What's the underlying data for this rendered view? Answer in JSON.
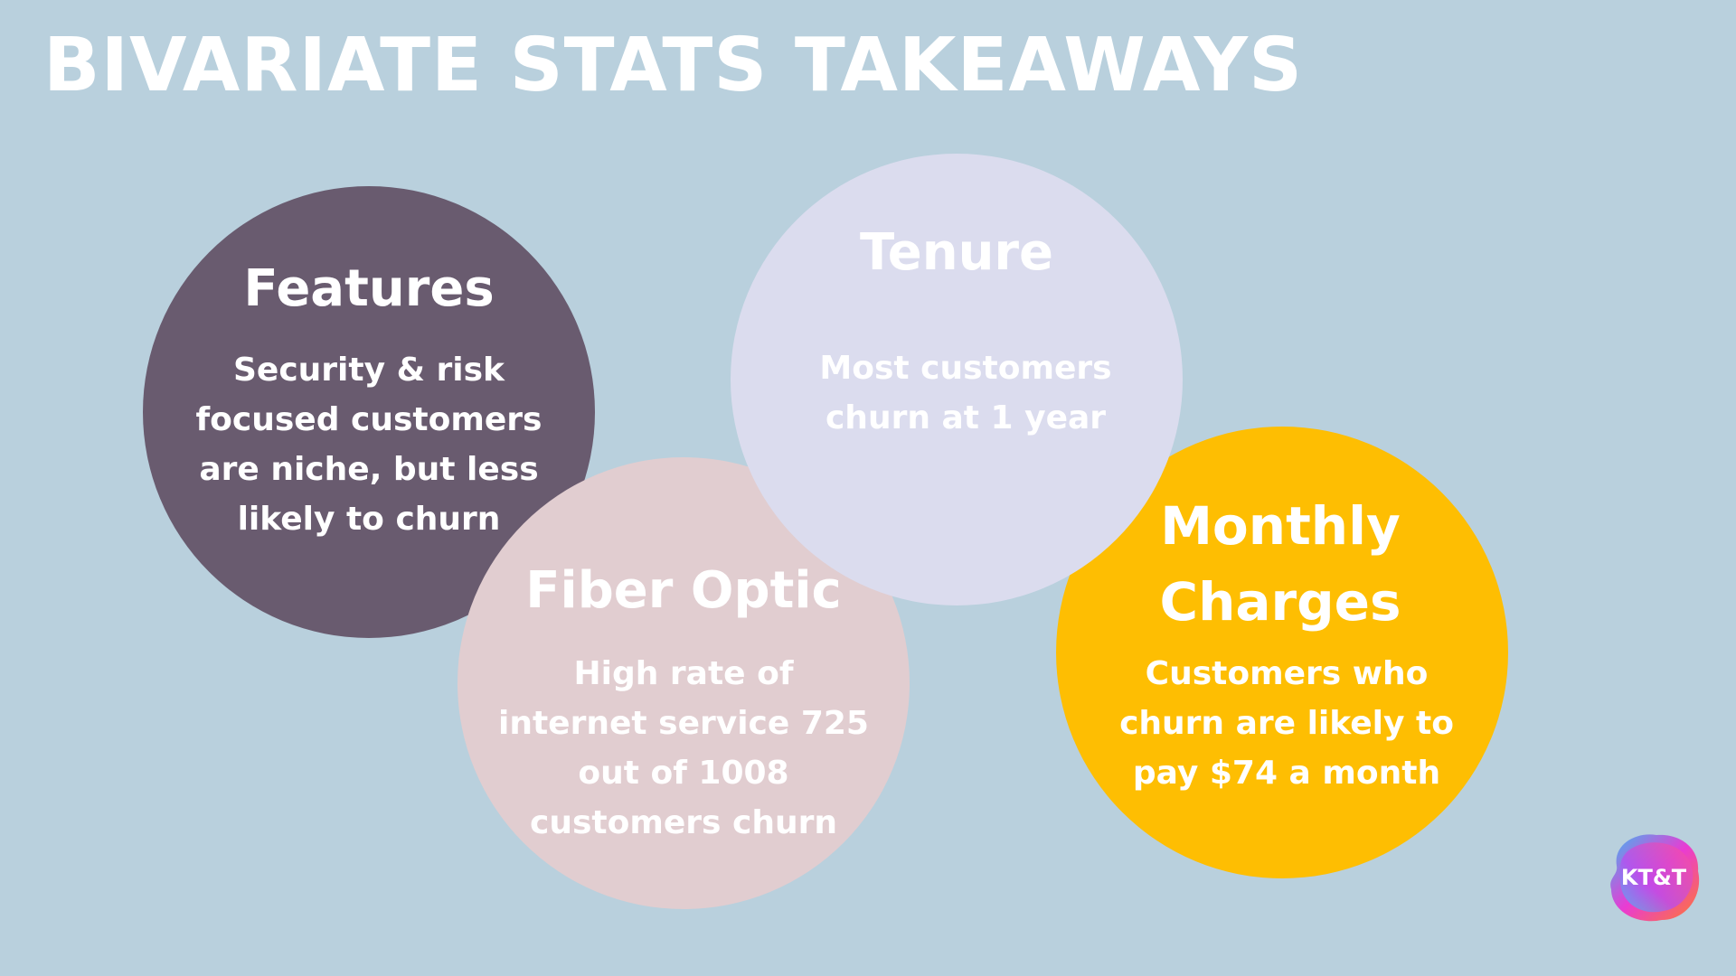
{
  "slide": {
    "title": "BIVARIATE STATS TAKEAWAYS",
    "background_color": "#B9D0DD"
  },
  "circles": {
    "features": {
      "heading": "Features",
      "body": "Security & risk focused customers are niche, but less likely to churn",
      "color": "#695B6F"
    },
    "fiber_optic": {
      "heading": "Fiber Optic",
      "body": "High rate of internet service 725 out of 1008 customers churn",
      "color": "#E1CDD0"
    },
    "tenure": {
      "heading": "Tenure",
      "body": "Most customers churn at 1 year",
      "color": "#DBDCEE"
    },
    "monthly_charges": {
      "heading": "Monthly Charges",
      "body": "Customers who churn are likely to pay $74 a month",
      "color": "#FEBE02"
    }
  },
  "logo": {
    "text": "KT&T",
    "icon": "gradient-blob-logo"
  }
}
